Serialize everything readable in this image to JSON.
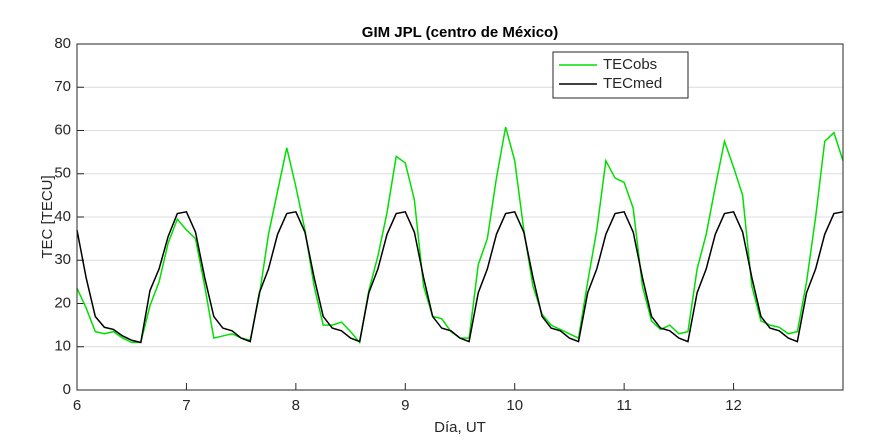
{
  "chart_data": {
    "type": "line",
    "title": "GIM JPL (centro de México)",
    "xlabel": "Día, UT",
    "ylabel": "TEC [TECU]",
    "x": [
      6,
      6.083,
      6.167,
      6.25,
      6.333,
      6.417,
      6.5,
      6.583,
      6.667,
      6.75,
      6.833,
      6.917,
      7,
      7.083,
      7.167,
      7.25,
      7.333,
      7.417,
      7.5,
      7.583,
      7.667,
      7.75,
      7.833,
      7.917,
      8,
      8.083,
      8.167,
      8.25,
      8.333,
      8.417,
      8.5,
      8.583,
      8.667,
      8.75,
      8.833,
      8.917,
      9,
      9.083,
      9.167,
      9.25,
      9.333,
      9.417,
      9.5,
      9.583,
      9.667,
      9.75,
      9.833,
      9.917,
      10,
      10.083,
      10.167,
      10.25,
      10.333,
      10.417,
      10.5,
      10.583,
      10.667,
      10.75,
      10.833,
      10.917,
      11,
      11.083,
      11.167,
      11.25,
      11.333,
      11.417,
      11.5,
      11.583,
      11.667,
      11.75,
      11.833,
      11.917,
      12,
      12.083,
      12.167,
      12.25,
      12.333,
      12.417,
      12.5,
      12.583,
      12.667,
      12.75,
      12.833,
      12.917,
      13
    ],
    "series": [
      {
        "name": "TECobs",
        "color": "#00e000",
        "values": [
          23.5,
          19,
          13.5,
          13,
          13.5,
          12,
          11,
          11,
          19.5,
          25,
          34,
          39.5,
          37,
          35,
          24,
          12,
          12.5,
          13,
          12,
          11.5,
          22,
          36,
          46,
          56,
          47,
          37,
          24,
          15,
          15,
          15.7,
          13.5,
          11,
          23,
          31,
          41,
          54,
          52.5,
          44,
          24,
          17,
          16.5,
          13.5,
          12,
          12,
          29,
          35,
          49,
          60.8,
          53,
          37,
          24,
          17.5,
          15,
          14,
          13,
          12,
          25,
          37,
          53,
          49,
          48,
          42,
          24,
          16,
          14,
          15,
          13,
          13.5,
          28,
          36,
          47,
          57.5,
          51.5,
          45,
          24,
          16,
          15,
          14.5,
          13,
          13.5,
          25,
          40,
          57.5,
          59.5,
          53
        ]
      },
      {
        "name": "TECmed",
        "color": "#000000",
        "values": [
          37,
          26,
          17,
          14.5,
          14,
          12.5,
          11.5,
          11,
          23,
          28,
          35.5,
          40.8,
          41.2,
          36.5,
          26,
          17,
          14.3,
          13.7,
          12,
          11.2,
          22.5,
          28,
          36,
          40.8,
          41.2,
          36.5,
          26,
          17,
          14.3,
          13.7,
          12,
          11.2,
          22.5,
          28,
          36,
          40.8,
          41.2,
          36.5,
          26,
          17,
          14.3,
          13.7,
          12,
          11.2,
          22.5,
          28,
          36,
          40.8,
          41.2,
          36.5,
          26,
          17,
          14.3,
          13.7,
          12,
          11.2,
          22.5,
          28,
          36,
          40.8,
          41.2,
          36.5,
          26,
          17,
          14.3,
          13.7,
          12,
          11.2,
          22.5,
          28,
          36,
          40.8,
          41.2,
          36.5,
          26,
          17,
          14.3,
          13.7,
          12,
          11.2,
          22.5,
          28,
          36,
          40.8,
          41.2
        ]
      }
    ],
    "xlim": [
      6,
      13
    ],
    "xticks": [
      6,
      7,
      8,
      9,
      10,
      11,
      12
    ],
    "ylim": [
      0,
      80
    ],
    "yticks": [
      0,
      10,
      20,
      30,
      40,
      50,
      60,
      70,
      80
    ],
    "grid": true,
    "legend": "top-right"
  }
}
